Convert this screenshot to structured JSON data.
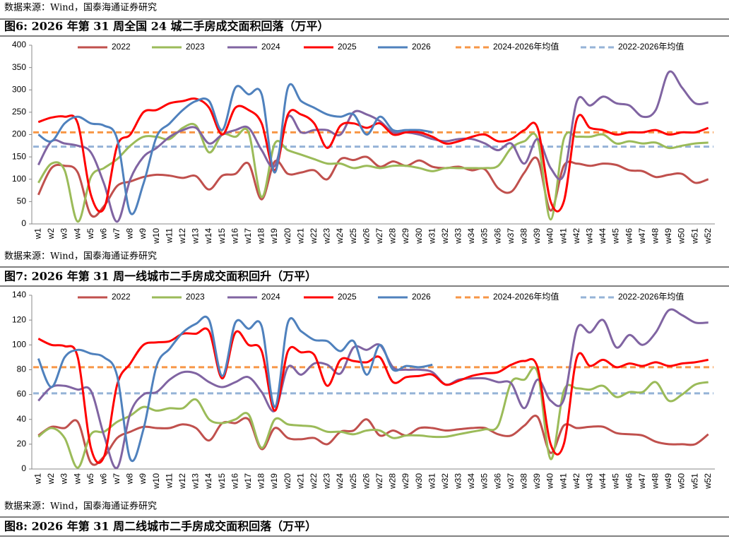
{
  "source_lines": [
    "数据来源：Wind，国泰海通证券研究",
    "数据来源：Wind，国泰海通证券研究",
    "数据来源：Wind，国泰海通证券研究"
  ],
  "figure8": {
    "title": "图8:  2026 年第 31 周二线城市二手房成交面积回落（万平）"
  },
  "chart_data": [
    {
      "type": "line",
      "title": "图6:  2026 年第 31 周全国 24 城二手房成交面积回落（万平）",
      "categories": [
        "w1",
        "w2",
        "w3",
        "w4",
        "w5",
        "w6",
        "w7",
        "w8",
        "w9",
        "w10",
        "w11",
        "w12",
        "w13",
        "w14",
        "w15",
        "w16",
        "w17",
        "w18",
        "w19",
        "w20",
        "w21",
        "w22",
        "w23",
        "w24",
        "w25",
        "w26",
        "w27",
        "w28",
        "w29",
        "w30",
        "w31",
        "w32",
        "w33",
        "w34",
        "w35",
        "w36",
        "w37",
        "w38",
        "w39",
        "w40",
        "w41",
        "w42",
        "w43",
        "w44",
        "w45",
        "w46",
        "w47",
        "w48",
        "w49",
        "w50",
        "w51",
        "w52"
      ],
      "ylim": [
        0,
        400
      ],
      "yticks": [
        0,
        50,
        100,
        150,
        200,
        250,
        300,
        350,
        400
      ],
      "series": [
        {
          "name": "2022",
          "color": "#c0504d",
          "values": [
            65,
            125,
            130,
            115,
            20,
            40,
            85,
            95,
            105,
            110,
            108,
            103,
            107,
            77,
            108,
            112,
            135,
            55,
            140,
            112,
            115,
            120,
            100,
            145,
            143,
            150,
            128,
            140,
            130,
            142,
            128,
            125,
            128,
            120,
            122,
            80,
            72,
            115,
            145,
            30,
            130,
            135,
            130,
            135,
            132,
            120,
            118,
            105,
            110,
            112,
            92,
            100
          ]
        },
        {
          "name": "2023",
          "color": "#9bbb59",
          "values": [
            92,
            135,
            120,
            5,
            105,
            125,
            145,
            175,
            195,
            195,
            190,
            215,
            220,
            160,
            200,
            195,
            205,
            60,
            180,
            165,
            155,
            145,
            135,
            135,
            125,
            130,
            125,
            130,
            130,
            125,
            118,
            125,
            125,
            125,
            125,
            130,
            170,
            185,
            190,
            10,
            190,
            195,
            195,
            200,
            180,
            185,
            180,
            182,
            170,
            175,
            180,
            182
          ]
        },
        {
          "name": "2024",
          "color": "#8064a2",
          "values": [
            132,
            185,
            180,
            175,
            160,
            90,
            5,
            100,
            150,
            170,
            195,
            210,
            215,
            180,
            200,
            210,
            215,
            165,
            130,
            240,
            205,
            210,
            210,
            200,
            250,
            245,
            230,
            205,
            205,
            200,
            190,
            185,
            190,
            190,
            180,
            165,
            180,
            135,
            190,
            125,
            110,
            275,
            265,
            285,
            270,
            265,
            240,
            255,
            340,
            305,
            270,
            272
          ]
        },
        {
          "name": "2025",
          "color": "#ff0000",
          "values": [
            228,
            238,
            240,
            225,
            65,
            35,
            175,
            200,
            250,
            255,
            270,
            275,
            280,
            260,
            200,
            260,
            255,
            225,
            120,
            245,
            245,
            225,
            170,
            220,
            225,
            215,
            225,
            200,
            205,
            205,
            195,
            180,
            185,
            195,
            200,
            185,
            190,
            210,
            215,
            50,
            50,
            235,
            215,
            210,
            200,
            205,
            205,
            210,
            200,
            205,
            205,
            215
          ]
        },
        {
          "name": "2026",
          "color": "#4f81bd",
          "values": [
            200,
            185,
            225,
            240,
            225,
            220,
            190,
            25,
            90,
            195,
            225,
            255,
            275,
            275,
            210,
            305,
            290,
            290,
            115,
            305,
            275,
            260,
            245,
            240,
            245,
            200,
            240,
            210,
            210,
            210,
            205,
            null,
            null,
            null,
            null,
            null,
            null,
            null,
            null,
            null,
            null,
            null,
            null,
            null,
            null,
            null,
            null,
            null,
            null,
            null,
            null,
            null
          ]
        }
      ],
      "reference_lines": [
        {
          "name": "2024-2026年均值",
          "color": "#f79646",
          "value": 205
        },
        {
          "name": "2022-2026年均值",
          "color": "#95b3d7",
          "value": 173
        }
      ]
    },
    {
      "type": "line",
      "title": "图7:  2026 年第 31 周一线城市二手房成交面积回升（万平）",
      "categories": [
        "w1",
        "w2",
        "w3",
        "w4",
        "w5",
        "w6",
        "w7",
        "w8",
        "w9",
        "w10",
        "w11",
        "w12",
        "w13",
        "w14",
        "w15",
        "w16",
        "w17",
        "w18",
        "w19",
        "w20",
        "w21",
        "w22",
        "w23",
        "w24",
        "w25",
        "w26",
        "w27",
        "w28",
        "w29",
        "w30",
        "w31",
        "w32",
        "w33",
        "w34",
        "w35",
        "w36",
        "w37",
        "w38",
        "w39",
        "w40",
        "w41",
        "w42",
        "w43",
        "w44",
        "w45",
        "w46",
        "w47",
        "w48",
        "w49",
        "w50",
        "w51",
        "w52"
      ],
      "ylim": [
        0,
        140
      ],
      "yticks": [
        0,
        20,
        40,
        60,
        80,
        100,
        120,
        140
      ],
      "series": [
        {
          "name": "2022",
          "color": "#c0504d",
          "values": [
            27,
            34,
            33,
            38,
            5,
            10,
            25,
            30,
            34,
            33,
            33,
            36,
            33,
            23,
            37,
            37,
            40,
            16,
            33,
            25,
            24,
            25,
            20,
            30,
            31,
            40,
            27,
            31,
            27,
            33,
            33,
            31,
            32,
            33,
            33,
            28,
            27,
            35,
            42,
            13,
            35,
            33,
            34,
            34,
            29,
            28,
            27,
            22,
            20,
            20,
            20,
            28
          ]
        },
        {
          "name": "2023",
          "color": "#9bbb59",
          "values": [
            26,
            33,
            25,
            1,
            28,
            30,
            38,
            43,
            50,
            47,
            49,
            49,
            56,
            40,
            37,
            40,
            44,
            17,
            40,
            36,
            35,
            34,
            30,
            30,
            28,
            31,
            31,
            25,
            27,
            27,
            26,
            26,
            28,
            30,
            32,
            35,
            70,
            72,
            78,
            8,
            63,
            65,
            64,
            67,
            58,
            62,
            62,
            70,
            55,
            60,
            68,
            70
          ]
        },
        {
          "name": "2024",
          "color": "#8064a2",
          "values": [
            55,
            66,
            67,
            64,
            63,
            27,
            1,
            45,
            60,
            62,
            72,
            78,
            77,
            70,
            66,
            70,
            74,
            62,
            47,
            82,
            76,
            85,
            84,
            77,
            98,
            96,
            100,
            82,
            80,
            80,
            78,
            68,
            72,
            73,
            73,
            70,
            69,
            49,
            72,
            55,
            56,
            113,
            110,
            120,
            98,
            108,
            100,
            110,
            128,
            124,
            118,
            118
          ]
        },
        {
          "name": "2025",
          "color": "#ff0000",
          "values": [
            105,
            100,
            99,
            90,
            17,
            10,
            68,
            85,
            100,
            102,
            103,
            109,
            109,
            111,
            73,
            110,
            100,
            95,
            47,
            95,
            94,
            92,
            67,
            88,
            87,
            86,
            90,
            70,
            74,
            75,
            76,
            68,
            71,
            75,
            77,
            78,
            84,
            87,
            82,
            20,
            20,
            90,
            83,
            88,
            82,
            85,
            83,
            86,
            83,
            85,
            86,
            88
          ]
        },
        {
          "name": "2026",
          "color": "#4f81bd",
          "values": [
            89,
            66,
            90,
            96,
            93,
            90,
            75,
            8,
            32,
            83,
            97,
            110,
            117,
            120,
            75,
            118,
            113,
            115,
            50,
            118,
            111,
            104,
            103,
            95,
            103,
            76,
            100,
            80,
            83,
            82,
            84,
            null,
            null,
            null,
            null,
            null,
            null,
            null,
            null,
            null,
            null,
            null,
            null,
            null,
            null,
            null,
            null,
            null,
            null,
            null,
            null,
            null
          ]
        }
      ],
      "reference_lines": [
        {
          "name": "2024-2026年均值",
          "color": "#f79646",
          "value": 82
        },
        {
          "name": "2022-2026年均值",
          "color": "#95b3d7",
          "value": 61
        }
      ]
    }
  ]
}
